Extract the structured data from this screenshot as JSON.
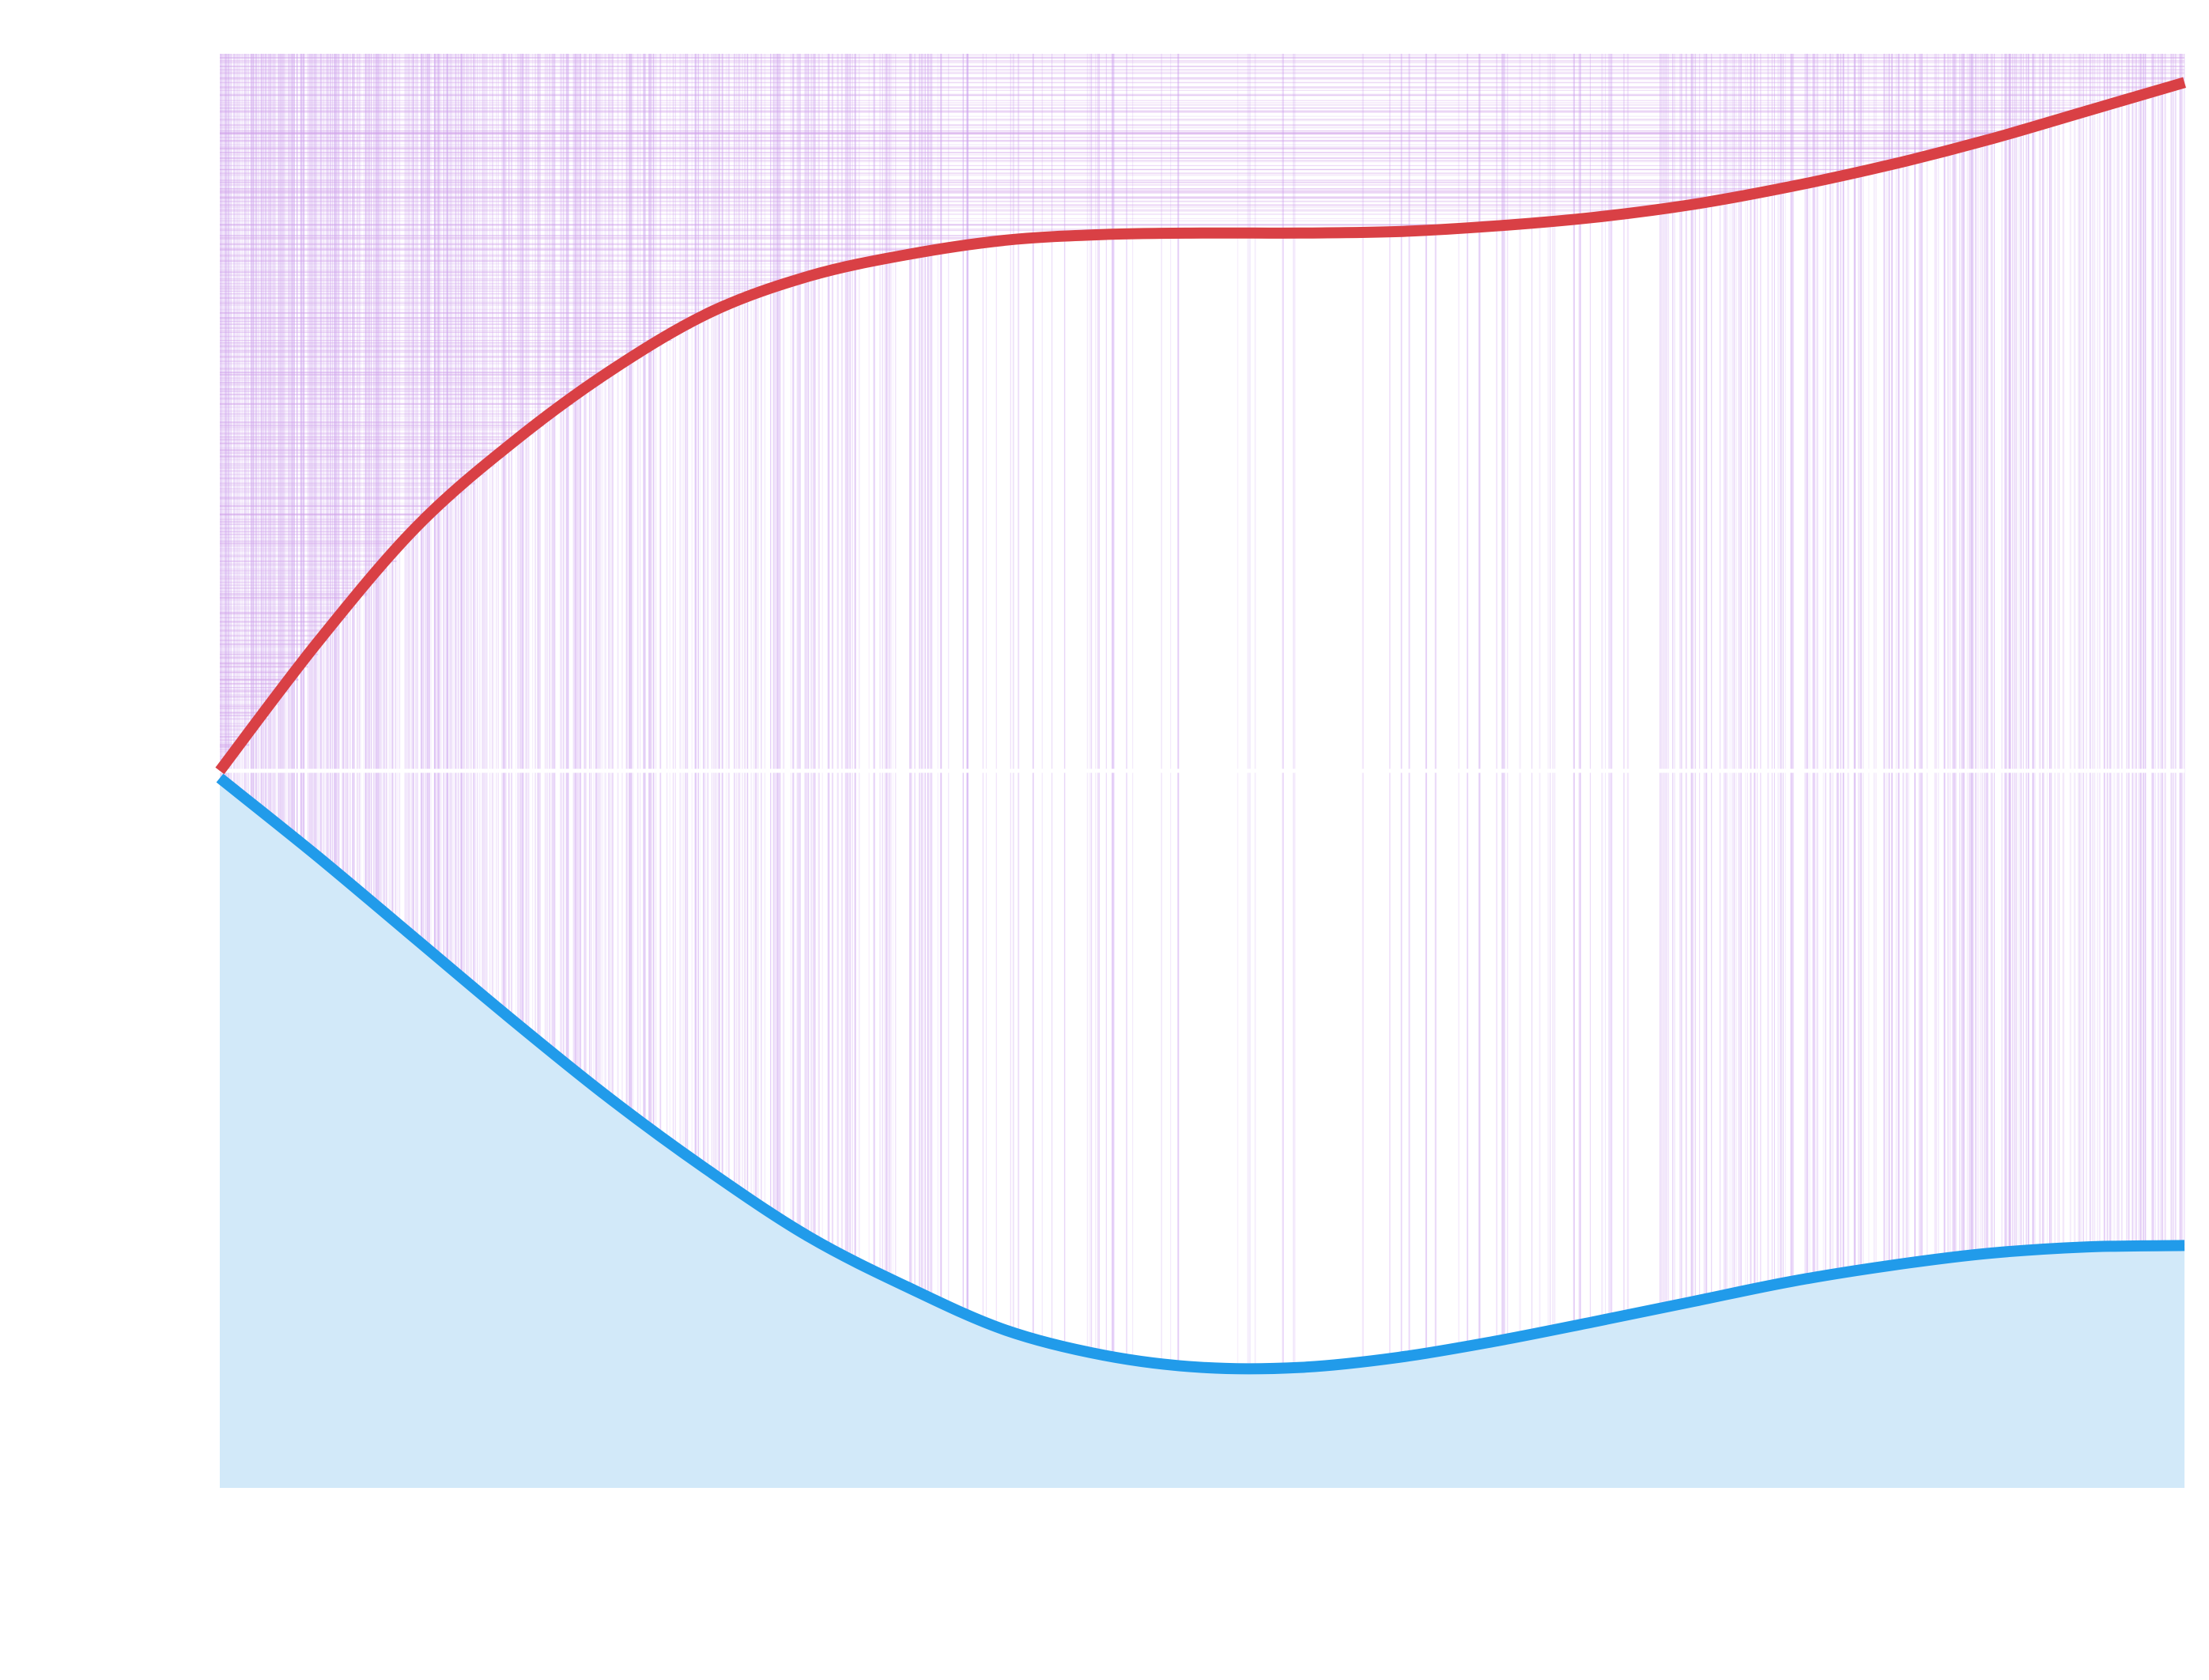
{
  "chart_data": {
    "type": "line",
    "title": "",
    "xlabel": "",
    "ylabel": "",
    "xlim": [
      0,
      1
    ],
    "ylim": [
      -1,
      1
    ],
    "grid": false,
    "legend": "none",
    "series": [
      {
        "color": "#d94045",
        "points": [
          [
            0.0,
            0.0
          ],
          [
            0.05,
            0.18
          ],
          [
            0.1,
            0.34
          ],
          [
            0.15,
            0.46
          ],
          [
            0.2,
            0.56
          ],
          [
            0.25,
            0.64
          ],
          [
            0.3,
            0.69
          ],
          [
            0.35,
            0.72
          ],
          [
            0.4,
            0.74
          ],
          [
            0.45,
            0.748
          ],
          [
            0.5,
            0.75
          ],
          [
            0.55,
            0.75
          ],
          [
            0.6,
            0.752
          ],
          [
            0.65,
            0.76
          ],
          [
            0.7,
            0.772
          ],
          [
            0.75,
            0.79
          ],
          [
            0.8,
            0.815
          ],
          [
            0.85,
            0.845
          ],
          [
            0.9,
            0.88
          ],
          [
            0.95,
            0.92
          ],
          [
            1.0,
            0.96
          ]
        ]
      },
      {
        "color": "#219bea",
        "fill": "#d2e9f9",
        "points": [
          [
            0.0,
            -0.01
          ],
          [
            0.05,
            -0.12
          ],
          [
            0.1,
            -0.235
          ],
          [
            0.15,
            -0.35
          ],
          [
            0.2,
            -0.46
          ],
          [
            0.25,
            -0.56
          ],
          [
            0.3,
            -0.65
          ],
          [
            0.35,
            -0.72
          ],
          [
            0.4,
            -0.78
          ],
          [
            0.45,
            -0.815
          ],
          [
            0.5,
            -0.832
          ],
          [
            0.55,
            -0.832
          ],
          [
            0.6,
            -0.818
          ],
          [
            0.65,
            -0.795
          ],
          [
            0.7,
            -0.768
          ],
          [
            0.75,
            -0.74
          ],
          [
            0.8,
            -0.712
          ],
          [
            0.85,
            -0.69
          ],
          [
            0.9,
            -0.673
          ],
          [
            0.95,
            -0.664
          ],
          [
            1.0,
            -0.662
          ]
        ]
      }
    ],
    "background_lines": {
      "vertical_color": "#c493ec",
      "horizontal_color": "#cf9ee8",
      "density": [
        [
          0.0,
          1.0
        ],
        [
          0.15,
          0.75
        ],
        [
          0.3,
          0.45
        ],
        [
          0.45,
          0.12
        ],
        [
          0.5,
          0.05
        ],
        [
          0.55,
          0.05
        ],
        [
          0.6,
          0.12
        ],
        [
          0.7,
          0.3
        ],
        [
          0.85,
          0.55
        ],
        [
          1.0,
          0.7
        ]
      ]
    }
  }
}
